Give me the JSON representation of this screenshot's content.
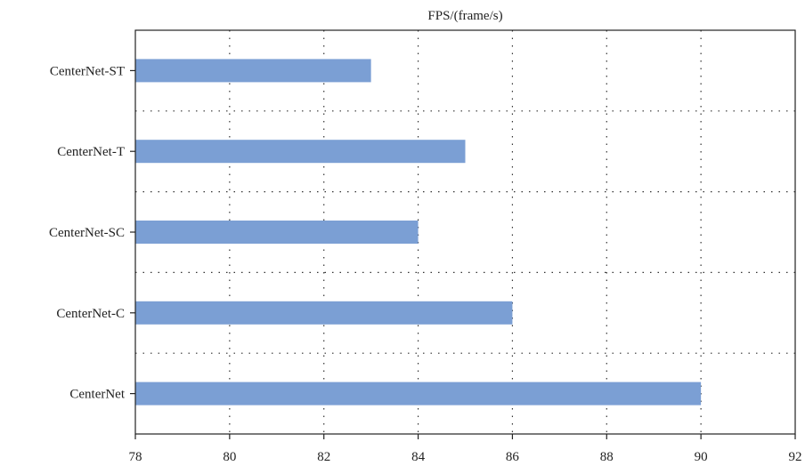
{
  "chart_data": {
    "type": "bar",
    "orientation": "horizontal",
    "title": "FPS/(frame/s)",
    "categories": [
      "CenterNet-ST",
      "CenterNet-T",
      "CenterNet-SC",
      "CenterNet-C",
      "CenterNet"
    ],
    "values": [
      83,
      85,
      84,
      86,
      90
    ],
    "xlim": [
      78,
      92
    ],
    "xticks": [
      "78",
      "80",
      "82",
      "84",
      "86",
      "88",
      "90",
      "92"
    ],
    "grid": true,
    "bar_color": "#7b9fd4"
  }
}
